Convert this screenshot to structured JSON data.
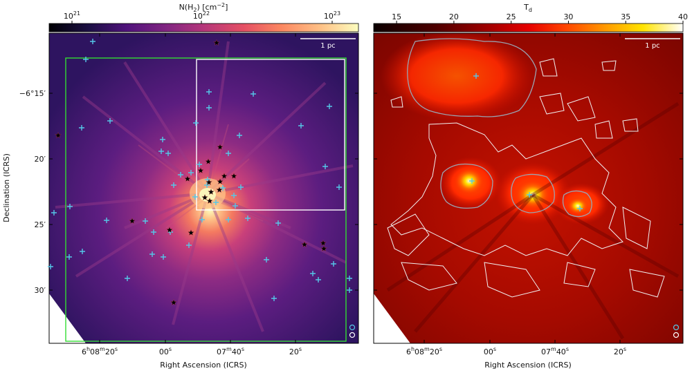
{
  "left_panel": {
    "colorbar_label": "N(H$_2$) [cm$^{-2}$]",
    "colorbar_label_text": "N(H",
    "colorbar_label_sub": "2",
    "colorbar_label_unit": ") [cm",
    "colorbar_label_exp": "−2",
    "colorbar_label_close": "]",
    "colorbar_ticks": [
      {
        "base": "10",
        "exp": "21"
      },
      {
        "base": "10",
        "exp": "22"
      },
      {
        "base": "10",
        "exp": "23"
      }
    ],
    "scale_bar": "1 pc",
    "ylabel": "Declination (ICRS)",
    "xlabel": "Right Ascension (ICRS)",
    "y_ticks": [
      "−6°15′",
      "20′",
      "25′",
      "30′"
    ],
    "x_ticks": [
      {
        "main": "6",
        "h": "h",
        "mid": "08",
        "m": "m",
        "sec": "20",
        "s": "s"
      },
      {
        "main": "00",
        "s": "s"
      },
      {
        "main": "07",
        "m": "m",
        "sec": "40",
        "s": "s"
      },
      {
        "main": "20",
        "s": "s"
      }
    ],
    "colors": {
      "green_box": "#33dd33",
      "white_box": "#ffffff",
      "cyan_cross": "#55c8e8",
      "star": "#000000"
    }
  },
  "right_panel": {
    "colorbar_label": "T$_d$",
    "colorbar_label_text": "T",
    "colorbar_label_sub": "d",
    "colorbar_ticks": [
      "15",
      "20",
      "25",
      "30",
      "35",
      "40"
    ],
    "scale_bar": "1 pc",
    "xlabel": "Right Ascension (ICRS)",
    "x_ticks": [
      {
        "main": "6",
        "h": "h",
        "mid": "08",
        "m": "m",
        "sec": "20",
        "s": "s"
      },
      {
        "main": "00",
        "s": "s"
      },
      {
        "main": "07",
        "m": "m",
        "sec": "40",
        "s": "s"
      },
      {
        "main": "20",
        "s": "s"
      }
    ],
    "colors": {
      "contour_grey": "#9aa4b2",
      "contour_white": "#f2f2f2",
      "cyan_cross": "#55c8e8"
    }
  },
  "chart_data": [
    {
      "type": "heatmap",
      "title": "",
      "colorbar": {
        "label": "N(H2) [cm^-2]",
        "scale": "log",
        "range": [
          1e+21,
          1e+23
        ],
        "colormap": "magma"
      },
      "xlabel": "Right Ascension (ICRS)",
      "ylabel": "Declination (ICRS)",
      "x_tick_labels": [
        "6h08m20s",
        "00s",
        "07m40s",
        "20s"
      ],
      "y_tick_labels": [
        "-6°15'",
        "20'",
        "25'",
        "30'"
      ],
      "scale_bar": "1 pc",
      "overlays": [
        "green rectangle region",
        "white rectangle region",
        "cyan crosses (sources)",
        "black stars (sources)"
      ]
    },
    {
      "type": "heatmap",
      "title": "",
      "colorbar": {
        "label": "Td",
        "scale": "linear",
        "range": [
          13,
          40
        ],
        "ticks": [
          15,
          20,
          25,
          30,
          35,
          40
        ],
        "colormap": "hot"
      },
      "xlabel": "Right Ascension (ICRS)",
      "x_tick_labels": [
        "6h08m20s",
        "00s",
        "07m40s",
        "20s"
      ],
      "scale_bar": "1 pc",
      "overlays": [
        "grey contour",
        "white contours",
        "cyan crosses (sources)"
      ]
    }
  ]
}
